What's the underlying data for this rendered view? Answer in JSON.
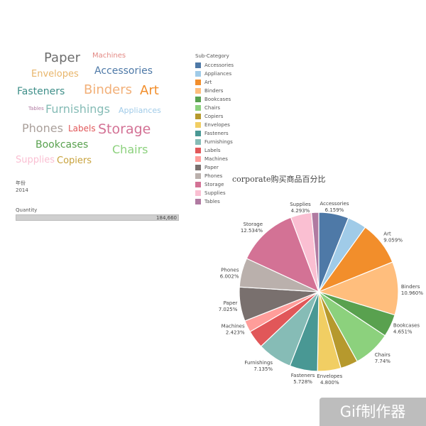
{
  "wordcloud": [
    {
      "text": "Paper",
      "color": "#6e6e6e"
    },
    {
      "text": "Machines",
      "color": "#e38984"
    },
    {
      "text": "Envelopes",
      "color": "#e8b56a"
    },
    {
      "text": "Accessories",
      "color": "#4e79a7"
    },
    {
      "text": "Fasteners",
      "color": "#3f8f89"
    },
    {
      "text": "Binders",
      "color": "#f2b079"
    },
    {
      "text": "Art",
      "color": "#f28e2b"
    },
    {
      "text": "Tables",
      "color": "#b07aa1"
    },
    {
      "text": "Furnishings",
      "color": "#86bcb6"
    },
    {
      "text": "Appliances",
      "color": "#a0cbe8"
    },
    {
      "text": "Phones",
      "color": "#aaa09b"
    },
    {
      "text": "Labels",
      "color": "#e15759"
    },
    {
      "text": "Storage",
      "color": "#d37295"
    },
    {
      "text": "Bookcases",
      "color": "#59a14f"
    },
    {
      "text": "Chairs",
      "color": "#8cd17d"
    },
    {
      "text": "Supplies",
      "color": "#fabfd2"
    },
    {
      "text": "Copiers",
      "color": "#c8a23c"
    }
  ],
  "filters": {
    "year_label": "年份",
    "year_value": "2014",
    "quantity_label": "Quantity",
    "quantity_value": "184,660",
    "quantity_fill_fraction": 1.0
  },
  "legend": {
    "title": "Sub-Category",
    "items": [
      {
        "label": "Accessories",
        "color": "#4e79a7"
      },
      {
        "label": "Appliances",
        "color": "#a0cbe8"
      },
      {
        "label": "Art",
        "color": "#f28e2b"
      },
      {
        "label": "Binders",
        "color": "#ffbe7d"
      },
      {
        "label": "Bookcases",
        "color": "#59a14f"
      },
      {
        "label": "Chairs",
        "color": "#8cd17d"
      },
      {
        "label": "Copiers",
        "color": "#b6992d"
      },
      {
        "label": "Envelopes",
        "color": "#f1ce63"
      },
      {
        "label": "Fasteners",
        "color": "#499894"
      },
      {
        "label": "Furnishings",
        "color": "#86bcb6"
      },
      {
        "label": "Labels",
        "color": "#e15759"
      },
      {
        "label": "Machines",
        "color": "#ff9d9a"
      },
      {
        "label": "Paper",
        "color": "#79706e"
      },
      {
        "label": "Phones",
        "color": "#bab0ac"
      },
      {
        "label": "Storage",
        "color": "#d37295"
      },
      {
        "label": "Supplies",
        "color": "#fabfd2"
      },
      {
        "label": "Tables",
        "color": "#b07aa1"
      }
    ]
  },
  "badge": {
    "text": "Gif制作器"
  },
  "chart_data": {
    "type": "pie",
    "title": "corporate购买商品百分比",
    "slices": [
      {
        "name": "Accessories",
        "value": 6.159,
        "label": "6.159%",
        "color": "#4e79a7"
      },
      {
        "name": "Appliances",
        "value": 3.9,
        "label": "",
        "color": "#a0cbe8"
      },
      {
        "name": "Art",
        "value": 9.059,
        "label": "9.059%",
        "color": "#f28e2b"
      },
      {
        "name": "Binders",
        "value": 10.96,
        "label": "10.960%",
        "color": "#ffbe7d"
      },
      {
        "name": "Bookcases",
        "value": 4.651,
        "label": "4.651%",
        "color": "#59a14f"
      },
      {
        "name": "Chairs",
        "value": 7.74,
        "label": "7.74%",
        "color": "#8cd17d"
      },
      {
        "name": "Copiers",
        "value": 3.6,
        "label": "",
        "color": "#b6992d"
      },
      {
        "name": "Envelopes",
        "value": 4.8,
        "label": "4.800%",
        "color": "#f1ce63"
      },
      {
        "name": "Fasteners",
        "value": 5.728,
        "label": "5.728%",
        "color": "#499894"
      },
      {
        "name": "Furnishings",
        "value": 7.135,
        "label": "7.135%",
        "color": "#86bcb6"
      },
      {
        "name": "Labels",
        "value": 3.7,
        "label": "",
        "color": "#e15759"
      },
      {
        "name": "Machines",
        "value": 2.423,
        "label": "2.423%",
        "color": "#ff9d9a"
      },
      {
        "name": "Paper",
        "value": 7.025,
        "label": "7.025%",
        "color": "#79706e"
      },
      {
        "name": "Phones",
        "value": 6.002,
        "label": "6.002%",
        "color": "#bab0ac"
      },
      {
        "name": "Storage",
        "value": 12.534,
        "label": "12.534%",
        "color": "#d37295"
      },
      {
        "name": "Supplies",
        "value": 4.293,
        "label": "4.293%",
        "color": "#fabfd2"
      },
      {
        "name": "Tables",
        "value": 1.5,
        "label": "",
        "color": "#b07aa1"
      }
    ]
  }
}
